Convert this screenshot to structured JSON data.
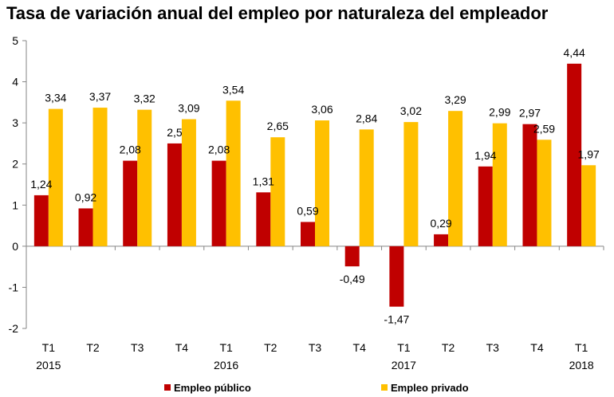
{
  "chart_data": {
    "type": "bar",
    "title": "Tasa de variación anual del empleo por naturaleza del empleador",
    "categories": [
      "T1",
      "T2",
      "T3",
      "T4",
      "T1",
      "T2",
      "T3",
      "T4",
      "T1",
      "T2",
      "T3",
      "T4",
      "T1"
    ],
    "year_labels": [
      "2015",
      "",
      "",
      "",
      "2016",
      "",
      "",
      "",
      "2017",
      "",
      "",
      "",
      "2018"
    ],
    "series": [
      {
        "name": "Empleo público",
        "color": "#c00000",
        "values": [
          1.24,
          0.92,
          2.08,
          2.5,
          2.08,
          1.31,
          0.59,
          -0.49,
          -1.47,
          0.29,
          1.94,
          2.97,
          4.44
        ],
        "labels": [
          "1,24",
          "0,92",
          "2,08",
          "2,5",
          "2,08",
          "1,31",
          "0,59",
          "-0,49",
          "-1,47",
          "0,29",
          "1,94",
          "2,97",
          "4,44"
        ]
      },
      {
        "name": "Empleo privado",
        "color": "#ffc000",
        "values": [
          3.34,
          3.37,
          3.32,
          3.09,
          3.54,
          2.65,
          3.06,
          2.84,
          3.02,
          3.29,
          2.99,
          2.59,
          1.97
        ],
        "labels": [
          "3,34",
          "3,37",
          "3,32",
          "3,09",
          "3,54",
          "2,65",
          "3,06",
          "2,84",
          "3,02",
          "3,29",
          "2,99",
          "2,59",
          "1,97"
        ]
      }
    ],
    "ylim": [
      -2,
      5
    ],
    "yticks": [
      -2,
      -1,
      0,
      1,
      2,
      3,
      4,
      5
    ],
    "ytick_labels": [
      "-2",
      "-1",
      "0",
      "1",
      "2",
      "3",
      "4",
      "5"
    ],
    "grid": false,
    "legend": "bottom-center"
  }
}
